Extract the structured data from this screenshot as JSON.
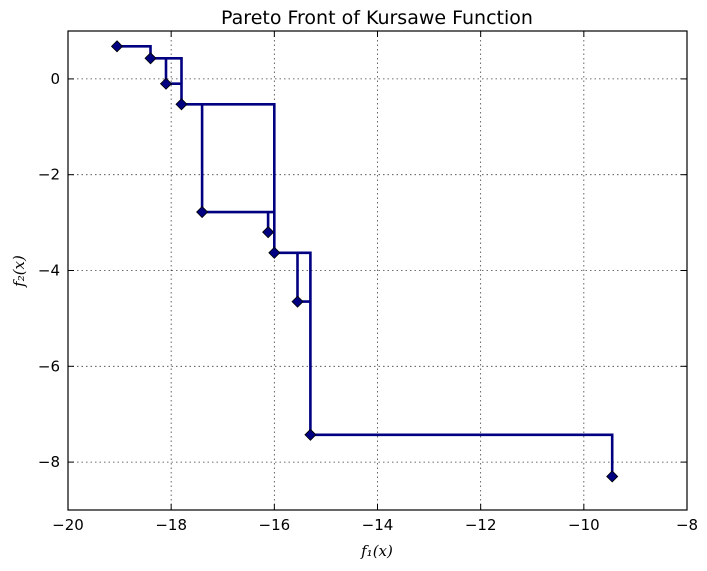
{
  "chart_data": {
    "type": "line",
    "title": "Pareto Front of Kursawe Function",
    "xlabel": "f₁(x)",
    "ylabel": "f₂(x)",
    "xlim": [
      -20,
      -8
    ],
    "ylim": [
      -9,
      1
    ],
    "xticks": [
      -20,
      -18,
      -16,
      -14,
      -12,
      -10,
      -8
    ],
    "yticks": [
      -8,
      -6,
      -4,
      -2,
      0
    ],
    "xtick_labels": [
      "−20",
      "−18",
      "−16",
      "−14",
      "−12",
      "−10",
      "−8"
    ],
    "ytick_labels": [
      "−8",
      "−6",
      "−4",
      "−2",
      "0"
    ],
    "grid": true,
    "series": [
      {
        "color": "#000080",
        "marker": "diamond",
        "drawstyle": "steps-post",
        "points": [
          {
            "x": -19.05,
            "y": 0.68
          },
          {
            "x": -18.4,
            "y": 0.43
          },
          {
            "x": -18.1,
            "y": -0.1
          },
          {
            "x": -17.8,
            "y": -0.53
          },
          {
            "x": -17.4,
            "y": -2.78
          },
          {
            "x": -16.12,
            "y": -3.2
          },
          {
            "x": -16.0,
            "y": -3.63
          },
          {
            "x": -15.55,
            "y": -4.65
          },
          {
            "x": -15.3,
            "y": -7.43
          },
          {
            "x": -9.45,
            "y": -8.3
          }
        ],
        "connection_order": [
          0,
          1,
          2,
          3,
          4,
          5,
          6,
          7,
          8,
          9
        ]
      }
    ],
    "step_path": [
      [
        -19.05,
        0.68
      ],
      [
        -18.4,
        0.68
      ],
      [
        -18.4,
        0.43
      ],
      [
        -17.8,
        0.43
      ],
      [
        -17.8,
        -0.1
      ],
      [
        -18.1,
        -0.1
      ],
      [
        -18.1,
        0.43
      ],
      [
        -17.8,
        0.43
      ],
      [
        -17.8,
        -0.53
      ],
      [
        -16.0,
        -0.53
      ],
      [
        -16.0,
        -3.63
      ],
      [
        -15.55,
        -3.63
      ],
      [
        -15.55,
        -4.65
      ],
      [
        -15.3,
        -4.65
      ],
      [
        -15.3,
        -3.63
      ],
      [
        -16.0,
        -3.63
      ],
      [
        -16.0,
        -2.78
      ],
      [
        -17.4,
        -2.78
      ],
      [
        -17.4,
        -0.53
      ],
      [
        -16.0,
        -0.53
      ],
      [
        -16.0,
        -2.78
      ],
      [
        -16.12,
        -2.78
      ],
      [
        -16.12,
        -3.2
      ],
      [
        -16.0,
        -3.2
      ],
      [
        -16.0,
        -3.63
      ],
      [
        -15.3,
        -3.63
      ],
      [
        -15.3,
        -7.43
      ],
      [
        -9.45,
        -7.43
      ],
      [
        -9.45,
        -8.3
      ]
    ]
  }
}
